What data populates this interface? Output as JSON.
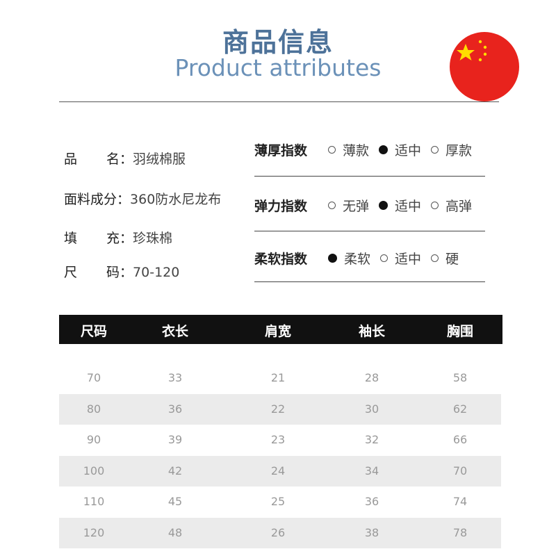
{
  "header": {
    "title_cn": "商品信息",
    "title_en": "Product attributes",
    "flag_icon": "china-flag-icon",
    "flag_color": "#e8231d"
  },
  "info": [
    {
      "label_a": "品",
      "label_b": "名：",
      "value": "羽绒棉服"
    },
    {
      "label": "面料成分：",
      "value": "360防水尼龙布"
    },
    {
      "label_a": "填",
      "label_b": "充：",
      "value": "珍珠棉"
    },
    {
      "label_a": "尺",
      "label_b": "码：",
      "value": "70-120"
    }
  ],
  "indices": [
    {
      "name": "薄厚指数",
      "options": [
        "薄款",
        "适中",
        "厚款"
      ],
      "selected": 1
    },
    {
      "name": "弹力指数",
      "options": [
        "无弹",
        "适中",
        "高弹"
      ],
      "selected": 1
    },
    {
      "name": "柔软指数",
      "options": [
        "柔软",
        "适中",
        "硬"
      ],
      "selected": 0
    }
  ],
  "table": {
    "headers": [
      "尺码",
      "衣长",
      "肩宽",
      "袖长",
      "胸围"
    ],
    "rows": [
      [
        "70",
        "33",
        "21",
        "28",
        "58"
      ],
      [
        "80",
        "36",
        "22",
        "30",
        "62"
      ],
      [
        "90",
        "39",
        "23",
        "32",
        "66"
      ],
      [
        "100",
        "42",
        "24",
        "34",
        "70"
      ],
      [
        "110",
        "45",
        "25",
        "36",
        "74"
      ],
      [
        "120",
        "48",
        "26",
        "38",
        "78"
      ]
    ]
  }
}
